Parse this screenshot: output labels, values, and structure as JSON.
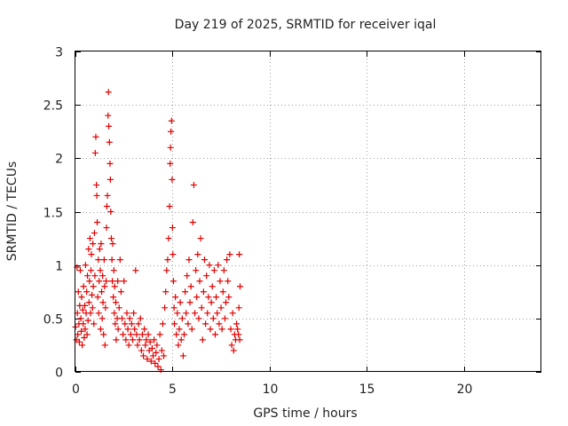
{
  "chart_data": {
    "type": "scatter",
    "title": "Day 219 of 2025, SRMTID for receiver iqal",
    "xlabel": "GPS time / hours",
    "ylabel": "SRMTID / TECUs",
    "xlim": [
      0,
      24
    ],
    "ylim": [
      0,
      3
    ],
    "xticks": [
      0,
      5,
      10,
      15,
      20
    ],
    "xtick_labels": [
      "0",
      "5",
      "10",
      "15",
      "20"
    ],
    "yticks": [
      0,
      0.5,
      1,
      1.5,
      2,
      2.5,
      3
    ],
    "ytick_labels": [
      "0",
      "0.5",
      "1",
      "1.5",
      "2",
      "2.5",
      "3"
    ],
    "grid": true,
    "marker": "+",
    "color": "#e00000",
    "series": [
      {
        "name": "iqal",
        "points": [
          [
            0.0,
            0.42
          ],
          [
            0.05,
            0.3
          ],
          [
            0.08,
            0.98
          ],
          [
            0.1,
            0.55
          ],
          [
            0.12,
            0.35
          ],
          [
            0.15,
            0.75
          ],
          [
            0.18,
            0.45
          ],
          [
            0.2,
            0.28
          ],
          [
            0.22,
            0.62
          ],
          [
            0.25,
            0.95
          ],
          [
            0.28,
            0.5
          ],
          [
            0.3,
            0.38
          ],
          [
            0.32,
            0.7
          ],
          [
            0.35,
            0.25
          ],
          [
            0.38,
            0.58
          ],
          [
            0.4,
            0.45
          ],
          [
            0.42,
            0.8
          ],
          [
            0.45,
            0.32
          ],
          [
            0.48,
            0.62
          ],
          [
            0.5,
            0.4
          ],
          [
            0.52,
            1.0
          ],
          [
            0.55,
            0.55
          ],
          [
            0.58,
            0.75
          ],
          [
            0.6,
            0.35
          ],
          [
            0.62,
            0.9
          ],
          [
            0.65,
            0.48
          ],
          [
            0.68,
            1.15
          ],
          [
            0.7,
            0.65
          ],
          [
            0.72,
            0.85
          ],
          [
            0.75,
            1.25
          ],
          [
            0.78,
            0.55
          ],
          [
            0.8,
            0.95
          ],
          [
            0.82,
            1.1
          ],
          [
            0.85,
            0.72
          ],
          [
            0.88,
            0.6
          ],
          [
            0.9,
            1.2
          ],
          [
            0.92,
            0.8
          ],
          [
            0.95,
            0.45
          ],
          [
            0.98,
            1.3
          ],
          [
            1.0,
            0.9
          ],
          [
            1.02,
            2.05
          ],
          [
            1.05,
            2.2
          ],
          [
            1.08,
            1.75
          ],
          [
            1.1,
            1.65
          ],
          [
            1.12,
            1.4
          ],
          [
            1.15,
            0.7
          ],
          [
            1.18,
            1.05
          ],
          [
            1.2,
            0.55
          ],
          [
            1.22,
            0.85
          ],
          [
            1.25,
            1.15
          ],
          [
            1.28,
            0.95
          ],
          [
            1.3,
            0.4
          ],
          [
            1.32,
            1.2
          ],
          [
            1.35,
            0.75
          ],
          [
            1.38,
            0.5
          ],
          [
            1.4,
            0.9
          ],
          [
            1.42,
            0.65
          ],
          [
            1.45,
            0.35
          ],
          [
            1.48,
            1.05
          ],
          [
            1.5,
            0.8
          ],
          [
            1.52,
            0.25
          ],
          [
            1.55,
            0.6
          ],
          [
            1.58,
            0.85
          ],
          [
            1.6,
            1.35
          ],
          [
            1.62,
            1.55
          ],
          [
            1.65,
            1.65
          ],
          [
            1.68,
            2.4
          ],
          [
            1.7,
            2.62
          ],
          [
            1.72,
            2.3
          ],
          [
            1.75,
            2.15
          ],
          [
            1.78,
            1.95
          ],
          [
            1.8,
            1.8
          ],
          [
            1.82,
            1.5
          ],
          [
            1.85,
            1.25
          ],
          [
            1.88,
            1.05
          ],
          [
            1.9,
            0.85
          ],
          [
            1.92,
            1.2
          ],
          [
            1.95,
            0.7
          ],
          [
            1.98,
            0.95
          ],
          [
            2.0,
            0.55
          ],
          [
            2.02,
            0.8
          ],
          [
            2.05,
            0.45
          ],
          [
            2.08,
            0.65
          ],
          [
            2.1,
            0.3
          ],
          [
            2.15,
            0.5
          ],
          [
            2.18,
            0.85
          ],
          [
            2.2,
            0.4
          ],
          [
            2.25,
            0.6
          ],
          [
            2.3,
            1.05
          ],
          [
            2.35,
            0.75
          ],
          [
            2.4,
            0.5
          ],
          [
            2.45,
            0.35
          ],
          [
            2.5,
            0.85
          ],
          [
            2.55,
            0.45
          ],
          [
            2.6,
            0.3
          ],
          [
            2.65,
            0.55
          ],
          [
            2.7,
            0.4
          ],
          [
            2.75,
            0.25
          ],
          [
            2.8,
            0.5
          ],
          [
            2.85,
            0.35
          ],
          [
            2.9,
            0.45
          ],
          [
            2.95,
            0.3
          ],
          [
            3.0,
            0.55
          ],
          [
            3.05,
            0.4
          ],
          [
            3.1,
            0.95
          ],
          [
            3.15,
            0.35
          ],
          [
            3.2,
            0.25
          ],
          [
            3.25,
            0.45
          ],
          [
            3.3,
            0.3
          ],
          [
            3.35,
            0.5
          ],
          [
            3.4,
            0.2
          ],
          [
            3.45,
            0.35
          ],
          [
            3.5,
            0.15
          ],
          [
            3.55,
            0.4
          ],
          [
            3.6,
            0.25
          ],
          [
            3.65,
            0.3
          ],
          [
            3.7,
            0.12
          ],
          [
            3.75,
            0.35
          ],
          [
            3.8,
            0.2
          ],
          [
            3.85,
            0.28
          ],
          [
            3.9,
            0.1
          ],
          [
            3.95,
            0.22
          ],
          [
            4.0,
            0.15
          ],
          [
            4.05,
            0.3
          ],
          [
            4.1,
            0.08
          ],
          [
            4.15,
            0.18
          ],
          [
            4.2,
            0.25
          ],
          [
            4.25,
            0.05
          ],
          [
            4.3,
            0.12
          ],
          [
            4.35,
            0.35
          ],
          [
            4.4,
            0.02
          ],
          [
            4.45,
            0.2
          ],
          [
            4.5,
            0.45
          ],
          [
            4.55,
            0.15
          ],
          [
            4.6,
            0.6
          ],
          [
            4.65,
            0.75
          ],
          [
            4.7,
            0.95
          ],
          [
            4.75,
            1.05
          ],
          [
            4.8,
            1.25
          ],
          [
            4.85,
            1.55
          ],
          [
            4.88,
            1.95
          ],
          [
            4.9,
            2.1
          ],
          [
            4.92,
            2.25
          ],
          [
            4.95,
            2.35
          ],
          [
            4.98,
            1.8
          ],
          [
            5.0,
            1.35
          ],
          [
            5.02,
            1.1
          ],
          [
            5.05,
            0.85
          ],
          [
            5.08,
            0.6
          ],
          [
            5.1,
            0.45
          ],
          [
            5.15,
            0.7
          ],
          [
            5.2,
            0.35
          ],
          [
            5.25,
            0.55
          ],
          [
            5.3,
            0.25
          ],
          [
            5.35,
            0.4
          ],
          [
            5.4,
            0.65
          ],
          [
            5.45,
            0.3
          ],
          [
            5.5,
            0.5
          ],
          [
            5.55,
            0.15
          ],
          [
            5.6,
            0.35
          ],
          [
            5.65,
            0.75
          ],
          [
            5.7,
            0.55
          ],
          [
            5.75,
            0.9
          ],
          [
            5.8,
            0.45
          ],
          [
            5.85,
            1.05
          ],
          [
            5.9,
            0.65
          ],
          [
            5.95,
            0.8
          ],
          [
            6.0,
            0.4
          ],
          [
            6.05,
            1.4
          ],
          [
            6.1,
            1.75
          ],
          [
            6.15,
            0.55
          ],
          [
            6.2,
            0.95
          ],
          [
            6.25,
            0.7
          ],
          [
            6.3,
            1.1
          ],
          [
            6.35,
            0.5
          ],
          [
            6.4,
            0.85
          ],
          [
            6.45,
            1.25
          ],
          [
            6.5,
            0.6
          ],
          [
            6.55,
            0.3
          ],
          [
            6.6,
            0.75
          ],
          [
            6.65,
            1.05
          ],
          [
            6.7,
            0.45
          ],
          [
            6.75,
            0.9
          ],
          [
            6.8,
            0.55
          ],
          [
            6.85,
            0.7
          ],
          [
            6.9,
            1.0
          ],
          [
            6.95,
            0.4
          ],
          [
            7.0,
            0.65
          ],
          [
            7.05,
            0.8
          ],
          [
            7.1,
            0.5
          ],
          [
            7.15,
            0.95
          ],
          [
            7.2,
            0.35
          ],
          [
            7.25,
            0.7
          ],
          [
            7.3,
            0.55
          ],
          [
            7.35,
            1.0
          ],
          [
            7.4,
            0.45
          ],
          [
            7.45,
            0.85
          ],
          [
            7.5,
            0.6
          ],
          [
            7.55,
            0.4
          ],
          [
            7.6,
            0.75
          ],
          [
            7.65,
            0.95
          ],
          [
            7.7,
            0.5
          ],
          [
            7.75,
            0.65
          ],
          [
            7.8,
            1.05
          ],
          [
            7.85,
            0.85
          ],
          [
            7.9,
            0.7
          ],
          [
            7.95,
            1.1
          ],
          [
            8.0,
            0.4
          ],
          [
            8.05,
            0.25
          ],
          [
            8.1,
            0.55
          ],
          [
            8.15,
            0.2
          ],
          [
            8.2,
            0.35
          ],
          [
            8.25,
            0.3
          ],
          [
            8.3,
            0.45
          ],
          [
            8.35,
            0.4
          ],
          [
            8.4,
            0.35
          ],
          [
            8.42,
            0.6
          ],
          [
            8.44,
            1.1
          ],
          [
            8.46,
            0.3
          ],
          [
            8.48,
            0.8
          ]
        ]
      }
    ]
  }
}
